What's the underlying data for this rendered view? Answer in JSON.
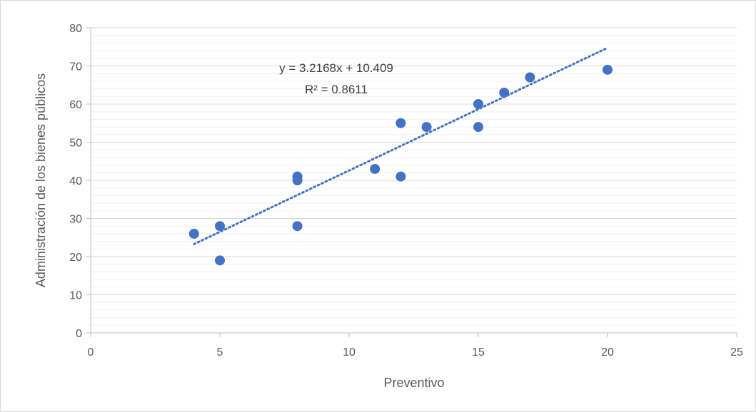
{
  "chart_data": {
    "type": "scatter",
    "xlabel": "Preventivo",
    "ylabel": "Administración de los bienes públicos",
    "xlim": [
      0,
      25
    ],
    "ylim": [
      0,
      80
    ],
    "x_ticks": [
      0,
      5,
      10,
      15,
      20,
      25
    ],
    "y_ticks": [
      0,
      10,
      20,
      30,
      40,
      50,
      60,
      70,
      80
    ],
    "grid": true,
    "minor_grid": true,
    "points": [
      {
        "x": 4,
        "y": 26
      },
      {
        "x": 5,
        "y": 28
      },
      {
        "x": 5,
        "y": 19
      },
      {
        "x": 8,
        "y": 41
      },
      {
        "x": 8,
        "y": 40
      },
      {
        "x": 8,
        "y": 28
      },
      {
        "x": 11,
        "y": 43
      },
      {
        "x": 12,
        "y": 55
      },
      {
        "x": 12,
        "y": 41
      },
      {
        "x": 13,
        "y": 54
      },
      {
        "x": 15,
        "y": 60
      },
      {
        "x": 15,
        "y": 54
      },
      {
        "x": 16,
        "y": 63
      },
      {
        "x": 17,
        "y": 67
      },
      {
        "x": 20,
        "y": 69
      }
    ],
    "trendline": {
      "type": "linear",
      "slope": 3.2168,
      "intercept": 10.409,
      "x_range": [
        4,
        20
      ],
      "equation_label": "y = 3.2168x + 10.409",
      "r2_label": "R² = 0.8611"
    },
    "colors": {
      "marker": "#4472c4",
      "trendline": "#4472c4",
      "grid_major": "#d9d9d9",
      "grid_minor": "#f0f0f0",
      "axis": "#bfbfbf"
    }
  }
}
